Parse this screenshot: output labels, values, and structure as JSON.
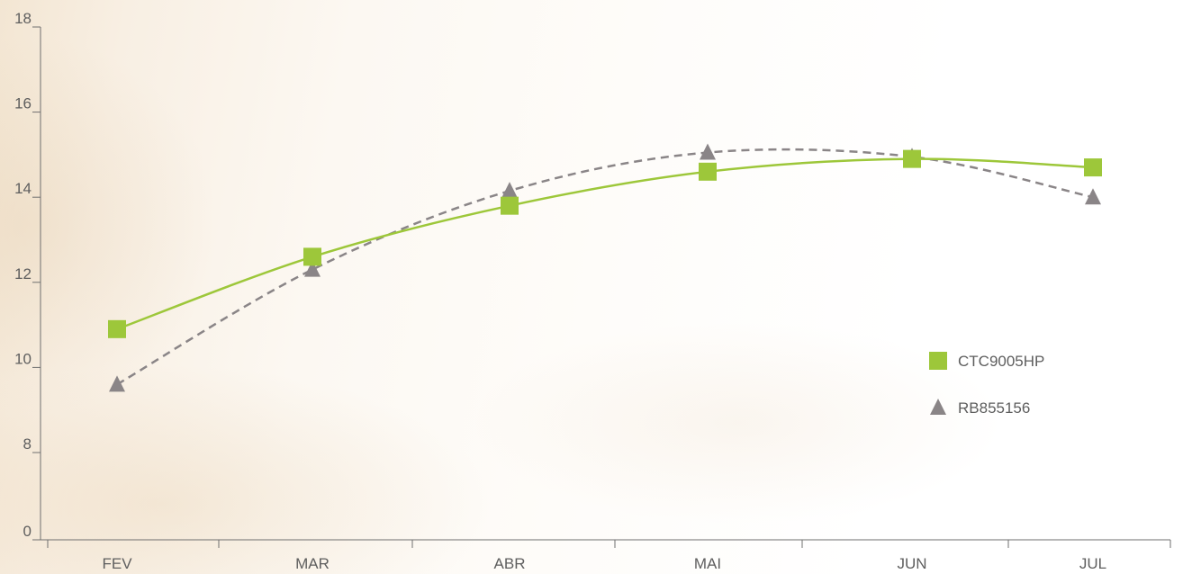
{
  "chart_data": {
    "type": "line",
    "title": "",
    "xlabel": "",
    "ylabel": "",
    "categories": [
      "FEV",
      "MAR",
      "ABR",
      "MAI",
      "JUN",
      "JUL"
    ],
    "y_ticks": [
      0,
      8,
      10,
      12,
      14,
      16,
      18
    ],
    "ylim": [
      0,
      18
    ],
    "grid": false,
    "legend_position": "right",
    "series": [
      {
        "name": "CTC9005HP",
        "values": [
          10.9,
          12.6,
          13.8,
          14.6,
          14.9,
          14.7
        ],
        "color": "#9dc73a",
        "marker": "square",
        "line_style": "solid"
      },
      {
        "name": "RB855156",
        "values": [
          9.6,
          12.3,
          14.15,
          15.05,
          14.95,
          14.0
        ],
        "color": "#8a8587",
        "marker": "triangle",
        "line_style": "dashed"
      }
    ]
  }
}
